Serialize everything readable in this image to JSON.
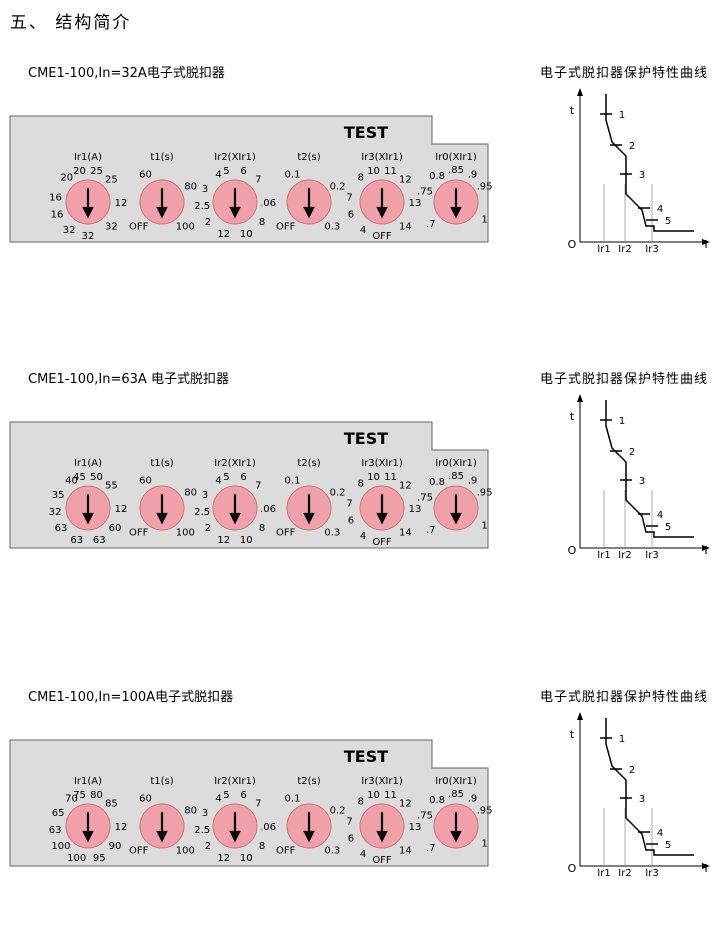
{
  "heading": "五、  结构简介",
  "blocks": [
    {
      "title": "CME1-100,In=32A电子式脱扣器",
      "curve_title": "电子式脱扣器保护特性曲线",
      "test_label": "TEST",
      "dials": [
        {
          "header": "Ir1(A)",
          "labels": [
            "20",
            "25",
            "25",
            "12",
            "32",
            "32",
            "32",
            "16",
            "16",
            "20"
          ]
        },
        {
          "header": "t1(s)",
          "labels": [
            "60",
            "80",
            "100",
            "OFF"
          ]
        },
        {
          "header": "Ir2(XIr1)",
          "labels": [
            "5",
            "6",
            "7",
            ".06",
            "8",
            "10",
            "12",
            "2",
            "2.5",
            "3",
            "4"
          ]
        },
        {
          "header": "t2(s)",
          "labels": [
            "0.1",
            "0.2",
            "0.3",
            "OFF"
          ]
        },
        {
          "header": "Ir3(XIr1)",
          "labels": [
            "10",
            "11",
            "12",
            "13",
            "14",
            "OFF",
            "4",
            "6",
            "7",
            "8"
          ]
        },
        {
          "header": "Ir0(XIr1)",
          "labels": [
            ".85",
            ".9",
            ".95",
            "1",
            ".7",
            ".75",
            "0.8"
          ]
        }
      ]
    },
    {
      "title": "CME1-100,In=63A 电子式脱扣器",
      "curve_title": "电子式脱扣器保护特性曲线",
      "test_label": "TEST",
      "dials": [
        {
          "header": "Ir1(A)",
          "labels": [
            "45",
            "50",
            "55",
            "12",
            "60",
            "63",
            "63",
            "63",
            "32",
            "35",
            "40"
          ]
        },
        {
          "header": "t1(s)",
          "labels": [
            "60",
            "80",
            "100",
            "OFF"
          ]
        },
        {
          "header": "Ir2(XIr1)",
          "labels": [
            "5",
            "6",
            "7",
            ".06",
            "8",
            "10",
            "12",
            "2",
            "2.5",
            "3",
            "4"
          ]
        },
        {
          "header": "t2(s)",
          "labels": [
            "0.1",
            "0.2",
            "0.3",
            "OFF"
          ]
        },
        {
          "header": "Ir3(XIr1)",
          "labels": [
            "10",
            "11",
            "12",
            "13",
            "14",
            "OFF",
            "4",
            "6",
            "7",
            "8"
          ]
        },
        {
          "header": "Ir0(XIr1)",
          "labels": [
            ".85",
            ".9",
            ".95",
            "1",
            ".7",
            ".75",
            "0.8"
          ]
        }
      ]
    },
    {
      "title": "CME1-100,In=100A电子式脱扣器",
      "curve_title": "电子式脱扣器保护特性曲线",
      "test_label": "TEST",
      "dials": [
        {
          "header": "Ir1(A)",
          "labels": [
            "75",
            "80",
            "85",
            "12",
            "90",
            "95",
            "100",
            "100",
            "63",
            "65",
            "70"
          ]
        },
        {
          "header": "t1(s)",
          "labels": [
            "60",
            "80",
            "100",
            "OFF"
          ]
        },
        {
          "header": "Ir2(XIr1)",
          "labels": [
            "5",
            "6",
            "7",
            ".06",
            "8",
            "10",
            "12",
            "2",
            "2.5",
            "3",
            "4"
          ]
        },
        {
          "header": "t2(s)",
          "labels": [
            "0.1",
            "0.2",
            "0.3",
            "OFF"
          ]
        },
        {
          "header": "Ir3(XIr1)",
          "labels": [
            "10",
            "11",
            "12",
            "13",
            "14",
            "OFF",
            "4",
            "6",
            "7",
            "8"
          ]
        },
        {
          "header": "Ir0(XIr1)",
          "labels": [
            ".85",
            ".9",
            ".95",
            "1",
            ".7",
            ".75",
            "0.8"
          ]
        }
      ]
    }
  ],
  "curve": {
    "y_axis": "t",
    "x_axis": "I",
    "origin": "O",
    "x_ticks": [
      "Ir1",
      "Ir2",
      "Ir3"
    ],
    "markers": [
      "1",
      "2",
      "3",
      "4",
      "5"
    ]
  },
  "colors": {
    "panel_fill": "#dcdcdc",
    "dial_fill": "#f0a0a8",
    "line": "#000000"
  }
}
